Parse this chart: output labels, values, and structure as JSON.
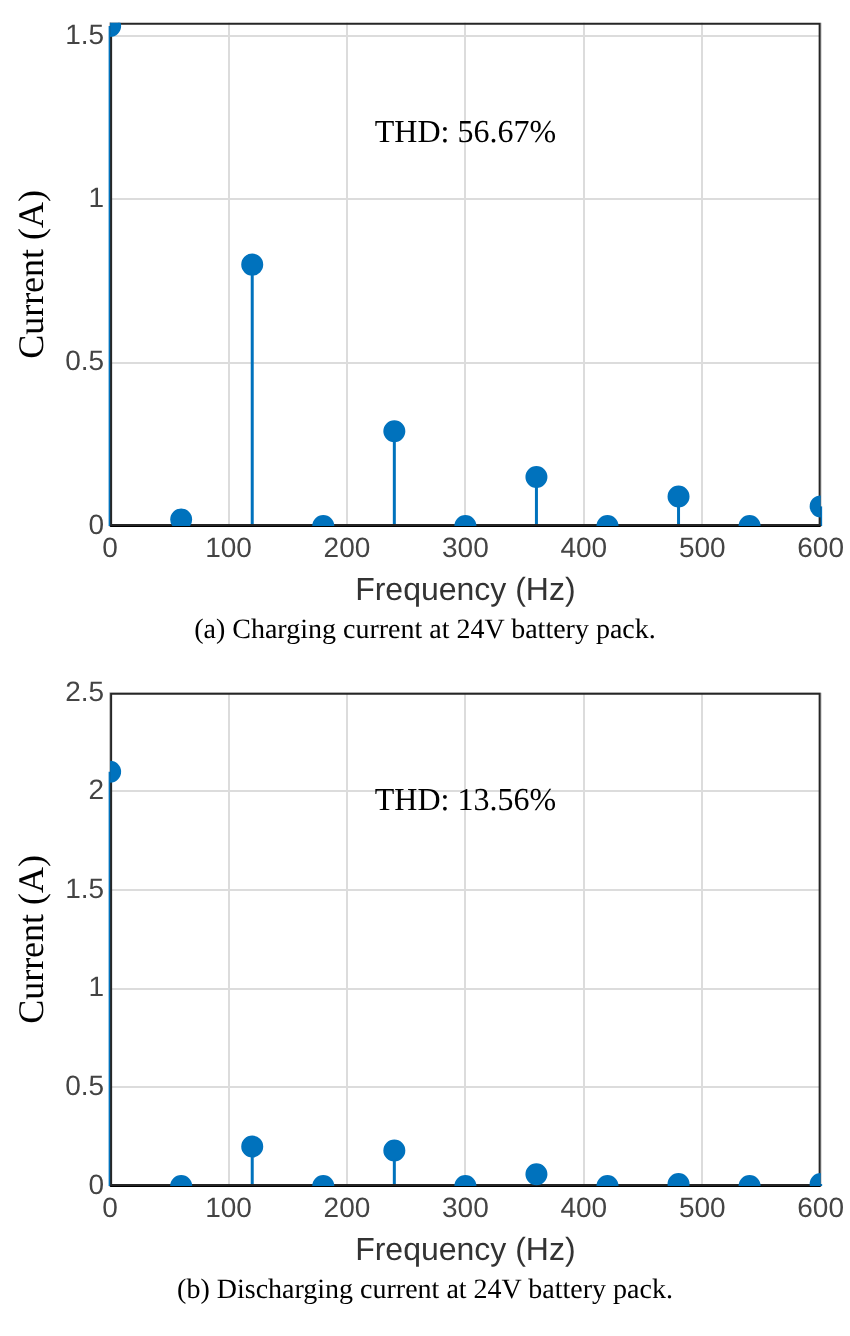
{
  "chart_data": [
    {
      "type": "lollipop",
      "xlabel": "Frequency (Hz)",
      "ylabel": "Current (A)",
      "x": [
        0,
        60,
        120,
        180,
        240,
        300,
        360,
        420,
        480,
        540,
        600
      ],
      "values": [
        1.53,
        0.02,
        0.8,
        0,
        0.29,
        0,
        0.15,
        0,
        0.09,
        0,
        0.06
      ],
      "color": "#0072bd",
      "xlim": [
        0,
        600
      ],
      "xticks": [
        0,
        100,
        200,
        300,
        400,
        500,
        600
      ],
      "ylim": [
        0,
        1.54
      ],
      "yticks": [
        0,
        0.5,
        1,
        1.5
      ],
      "grid": true,
      "marker": "circle",
      "annotations": [
        "THD: 56.67%",
        "(a) Charging current at 24V battery pack."
      ]
    },
    {
      "type": "lollipop",
      "xlabel": "Frequency (Hz)",
      "ylabel": "Current (A)",
      "x": [
        0,
        60,
        120,
        180,
        240,
        300,
        360,
        420,
        480,
        540,
        600
      ],
      "values": [
        2.1,
        0,
        0.2,
        0,
        0.18,
        0,
        0.06,
        0,
        0.01,
        0,
        0.01
      ],
      "color": "#0072bd",
      "xlim": [
        0,
        600
      ],
      "xticks": [
        0,
        100,
        200,
        300,
        400,
        500,
        600
      ],
      "ylim": [
        0,
        2.5
      ],
      "yticks": [
        0,
        0.5,
        1,
        1.5,
        2,
        2.5
      ],
      "grid": true,
      "marker": "circle",
      "annotations": [
        "THD: 13.56%",
        "(b) Discharging current at 24V battery pack."
      ]
    }
  ]
}
